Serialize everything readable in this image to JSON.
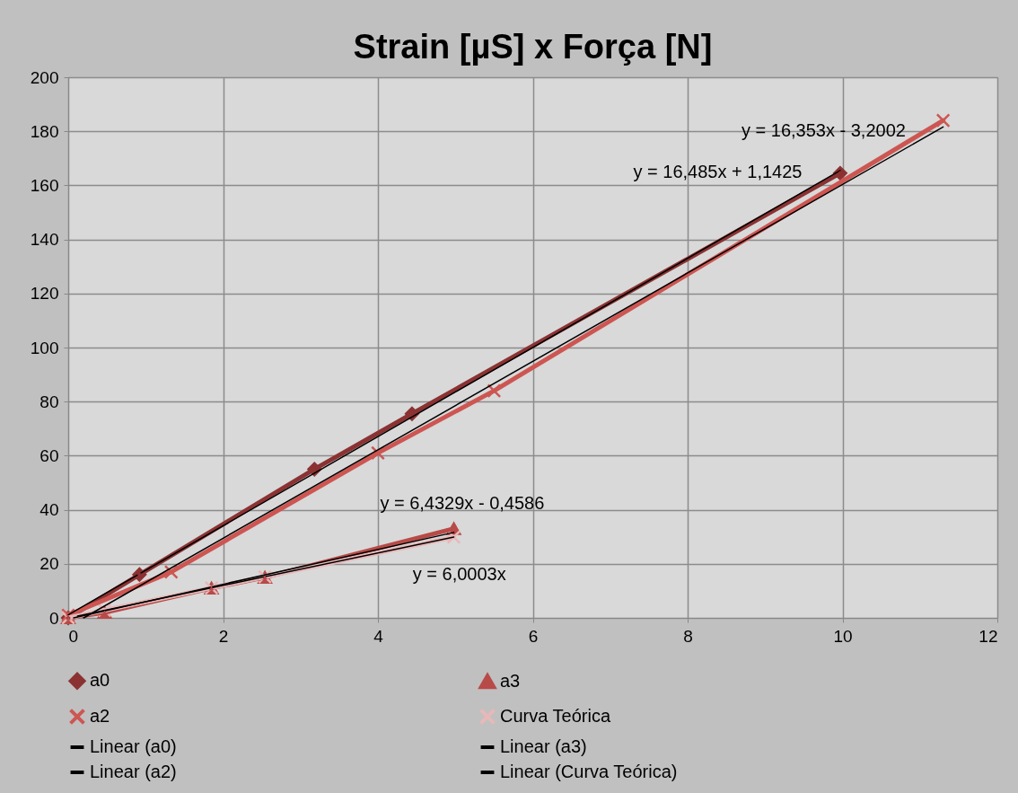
{
  "chart_data": {
    "type": "line",
    "title": "Strain [µS] x Força [N]",
    "xlim": [
      0,
      12
    ],
    "xticks": [
      0,
      2,
      4,
      6,
      8,
      10,
      12
    ],
    "ylim": [
      0,
      200
    ],
    "yticks": [
      0,
      20,
      40,
      60,
      80,
      100,
      120,
      140,
      160,
      180,
      200
    ],
    "grid": true,
    "legend": "bottom",
    "series": [
      {
        "name": "a0",
        "color": "#8b3232",
        "marker": "diamond",
        "x": [
          0,
          0.92,
          3.18,
          4.44,
          9.97
        ],
        "values": [
          0,
          16,
          55,
          75.5,
          164.5
        ]
      },
      {
        "name": "a3",
        "color": "#b84a48",
        "marker": "triangle",
        "x": [
          0,
          0.47,
          1.85,
          2.54,
          4.98
        ],
        "values": [
          0,
          2,
          11,
          15,
          33
        ]
      },
      {
        "name": "a2",
        "color": "#cd5652",
        "marker": "cross",
        "x": [
          0,
          1.33,
          4.0,
          5.5,
          11.3
        ],
        "values": [
          1,
          17,
          61,
          84,
          184
        ]
      },
      {
        "name": "Curva Teórica",
        "color": "#e8b8b8",
        "marker": "cross",
        "x": [
          0,
          0.47,
          1.85,
          2.54,
          4.98
        ],
        "values": [
          0,
          2.8,
          11.1,
          15.2,
          29.9
        ]
      },
      {
        "name": "Linear (a0)",
        "color": "#000000",
        "marker": "none",
        "x": [
          0,
          9.97
        ],
        "values": [
          1.1,
          165.5
        ]
      },
      {
        "name": "Linear (a3)",
        "color": "#000000",
        "marker": "none",
        "x": [
          0.07,
          4.98
        ],
        "values": [
          0,
          31.6
        ]
      },
      {
        "name": "Linear (a2)",
        "color": "#000000",
        "marker": "none",
        "x": [
          0.2,
          11.3
        ],
        "values": [
          0,
          181.6
        ]
      },
      {
        "name": "Linear (Curva Teórica)",
        "color": "#000000",
        "marker": "none",
        "x": [
          0.12,
          4.98
        ],
        "values": [
          0.7,
          29.9
        ]
      }
    ],
    "annotations": [
      "y = 16,353x - 3,2002",
      "y = 16,485x + 1,1425",
      "y = 6,4329x - 0,4586",
      "y = 6,0003x"
    ]
  }
}
